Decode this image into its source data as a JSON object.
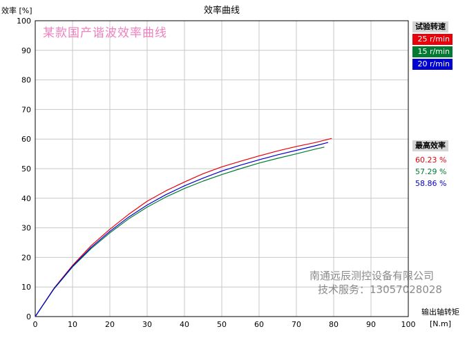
{
  "chart_data": {
    "type": "line",
    "title": "效率曲线",
    "ylabel": "效率 [%]",
    "xlabel": "输出轴转矩",
    "xunit": "[N.m]",
    "xlim": [
      0,
      100
    ],
    "ylim": [
      0,
      100
    ],
    "xticks": [
      "0",
      "10",
      "20",
      "30",
      "40",
      "50",
      "60",
      "70",
      "80",
      "90",
      "100"
    ],
    "yticks": [
      "0",
      "10",
      "20",
      "30",
      "40",
      "50",
      "60",
      "70",
      "80",
      "90",
      "100"
    ],
    "grid": true,
    "watermark": "某款国产谐波效率曲线",
    "series": [
      {
        "name": "25 r/min",
        "color": "#e8000a",
        "max_efficiency": "60.23 %",
        "x": [
          0,
          5,
          10,
          15,
          20,
          25,
          30,
          35,
          40,
          45,
          50,
          55,
          60,
          65,
          70,
          75,
          79.5
        ],
        "y": [
          0,
          9.5,
          17.3,
          24,
          29.5,
          34.5,
          39,
          42.5,
          45.5,
          48.3,
          50.6,
          52.5,
          54.3,
          56,
          57.5,
          58.8,
          60.23
        ]
      },
      {
        "name": "15 r/min",
        "color": "#007a33",
        "max_efficiency": "57.29 %",
        "x": [
          0,
          5,
          10,
          15,
          20,
          25,
          30,
          35,
          40,
          45,
          50,
          55,
          60,
          65,
          70,
          75,
          77.5
        ],
        "y": [
          0,
          9.3,
          16.8,
          23,
          28.3,
          33,
          37,
          40.4,
          43.3,
          45.8,
          48,
          50,
          51.9,
          53.5,
          55,
          56.6,
          57.29
        ]
      },
      {
        "name": "20 r/min",
        "color": "#0000d0",
        "max_efficiency": "58.86 %",
        "x": [
          0,
          5,
          10,
          15,
          20,
          25,
          30,
          35,
          40,
          45,
          50,
          55,
          60,
          65,
          70,
          75,
          78.5
        ],
        "y": [
          0,
          9.4,
          17,
          23.4,
          28.8,
          33.6,
          37.7,
          41.2,
          44.2,
          46.8,
          49.2,
          51.2,
          53,
          54.7,
          56.2,
          57.7,
          58.86
        ]
      }
    ]
  },
  "legend": {
    "speed_header": "试验转速",
    "efficiency_header": "最高效率"
  },
  "company": {
    "name": "南通远辰测控设备有限公司",
    "service": "技术服务：13057028028"
  }
}
